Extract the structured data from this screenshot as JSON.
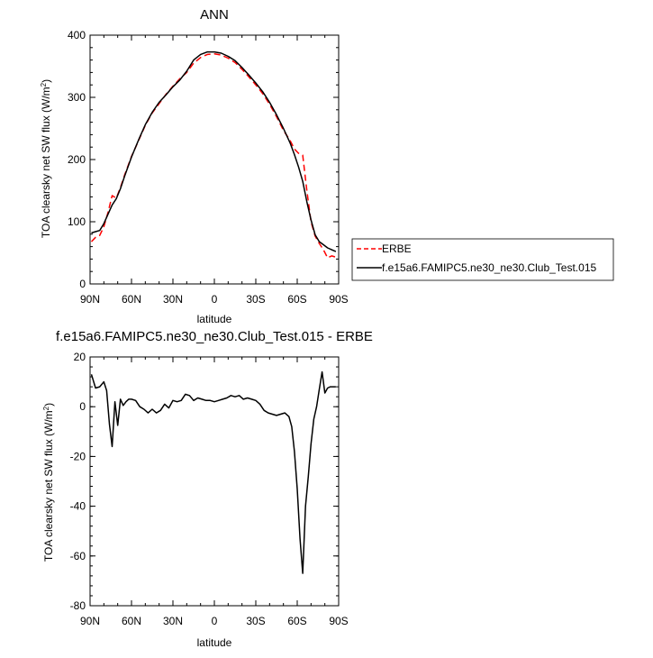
{
  "chart_data": [
    {
      "type": "line",
      "title": "ANN",
      "xlabel": "latitude",
      "ylabel": "TOA clearsky net SW flux (W/m",
      "ylabel_sup": "2",
      "ylabel_tail": ")",
      "xlim": [
        90,
        -90
      ],
      "ylim": [
        0,
        400
      ],
      "xticks": [
        {
          "value": 90,
          "label": "90N"
        },
        {
          "value": 60,
          "label": "60N"
        },
        {
          "value": 30,
          "label": "30N"
        },
        {
          "value": 0,
          "label": "0"
        },
        {
          "value": -30,
          "label": "30S"
        },
        {
          "value": -60,
          "label": "60S"
        },
        {
          "value": -90,
          "label": "90S"
        }
      ],
      "yticks": [
        0,
        100,
        200,
        300,
        400
      ],
      "legend_position": "right",
      "series": [
        {
          "name": "ERBE",
          "color": "#ff0000",
          "dash": "dashed",
          "x": [
            89,
            86,
            83,
            80,
            77,
            74,
            71,
            68,
            65,
            60,
            55,
            50,
            45,
            40,
            35,
            30,
            25,
            20,
            15,
            10,
            5,
            0,
            -5,
            -10,
            -15,
            -20,
            -25,
            -30,
            -35,
            -40,
            -45,
            -50,
            -55,
            -58,
            -61,
            -64,
            -67,
            -70,
            -73,
            -76,
            -79,
            -82,
            -85,
            -88
          ],
          "y": [
            68,
            75,
            78,
            92,
            115,
            142,
            138,
            155,
            175,
            205,
            230,
            255,
            275,
            290,
            305,
            318,
            330,
            340,
            355,
            364,
            369,
            370,
            368,
            363,
            356,
            345,
            333,
            320,
            306,
            289,
            269,
            247,
            230,
            217,
            210,
            207,
            150,
            100,
            77,
            65,
            55,
            42,
            45,
            43
          ]
        },
        {
          "name": "f.e15a6.FAMIPC5.ne30_ne30.Club_Test.015",
          "color": "#000000",
          "dash": "solid",
          "x": [
            89,
            86,
            83,
            80,
            77,
            74,
            71,
            68,
            65,
            60,
            55,
            50,
            45,
            40,
            35,
            30,
            25,
            20,
            15,
            10,
            5,
            0,
            -5,
            -10,
            -15,
            -20,
            -25,
            -30,
            -35,
            -40,
            -45,
            -50,
            -55,
            -58,
            -61,
            -64,
            -67,
            -70,
            -73,
            -76,
            -79,
            -82,
            -85,
            -88
          ],
          "y": [
            82,
            84,
            86,
            97,
            112,
            127,
            137,
            153,
            173,
            204,
            231,
            256,
            276,
            292,
            304,
            317,
            328,
            342,
            360,
            369,
            373,
            373,
            371,
            366,
            359,
            348,
            336,
            323,
            309,
            292,
            272,
            250,
            226,
            208,
            188,
            165,
            132,
            103,
            79,
            68,
            63,
            58,
            55,
            52
          ]
        }
      ]
    },
    {
      "type": "line",
      "title": "f.e15a6.FAMIPC5.ne30_ne30.Club_Test.015 - ERBE",
      "xlabel": "latitude",
      "ylabel": "TOA clearsky net SW flux (W/m",
      "ylabel_sup": "2",
      "ylabel_tail": ")",
      "xlim": [
        90,
        -90
      ],
      "ylim": [
        -80,
        20
      ],
      "xticks": [
        {
          "value": 90,
          "label": "90N"
        },
        {
          "value": 60,
          "label": "60N"
        },
        {
          "value": 30,
          "label": "30N"
        },
        {
          "value": 0,
          "label": "0"
        },
        {
          "value": -30,
          "label": "30S"
        },
        {
          "value": -60,
          "label": "60S"
        },
        {
          "value": -90,
          "label": "90S"
        }
      ],
      "yticks": [
        -80,
        -60,
        -40,
        -20,
        0,
        20
      ],
      "series": [
        {
          "color": "#000000",
          "dash": "solid",
          "x": [
            89,
            86,
            83,
            80,
            78,
            76,
            74,
            72,
            70,
            68,
            66,
            64,
            62,
            60,
            57,
            54,
            51,
            48,
            45,
            42,
            39,
            36,
            33,
            30,
            27,
            24,
            21,
            18,
            15,
            12,
            9,
            6,
            3,
            0,
            -3,
            -6,
            -9,
            -12,
            -15,
            -18,
            -21,
            -24,
            -27,
            -30,
            -33,
            -36,
            -39,
            -42,
            -45,
            -48,
            -51,
            -54,
            -56,
            -58,
            -60,
            -62,
            -64,
            -66,
            -68,
            -70,
            -72,
            -74,
            -76,
            -78,
            -80,
            -82,
            -84,
            -86,
            -88
          ],
          "y": [
            13,
            7.5,
            8,
            10,
            6.5,
            -7,
            -16,
            2,
            -7.5,
            3,
            0.5,
            2,
            3,
            3,
            2.5,
            0,
            -1,
            -2.5,
            -1,
            -2.5,
            -1.5,
            1,
            -0.5,
            2.5,
            2,
            2.5,
            5,
            4.5,
            2.5,
            3.5,
            3,
            2.5,
            2.5,
            2,
            2.5,
            3,
            3.5,
            4.5,
            4,
            4.5,
            3,
            3.5,
            3,
            2.5,
            1,
            -1.5,
            -2.5,
            -3,
            -3.5,
            -3,
            -2.5,
            -4,
            -8,
            -18,
            -33,
            -53,
            -67,
            -40,
            -28,
            -15,
            -5,
            0,
            7,
            14,
            5.5,
            7.5,
            8,
            8,
            8
          ]
        }
      ]
    }
  ]
}
